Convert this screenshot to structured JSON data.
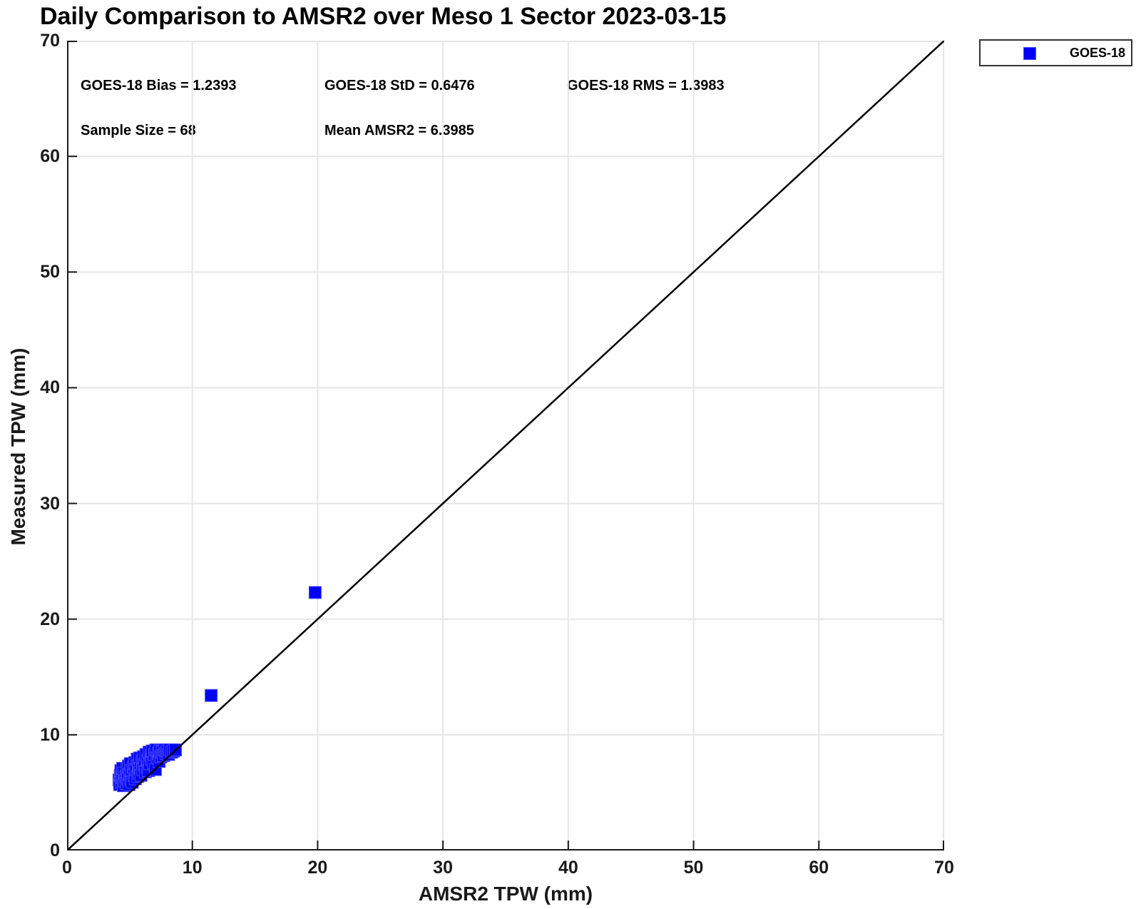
{
  "title": "Daily Comparison to AMSR2 over Meso 1 Sector 2023-03-15",
  "stats": {
    "bias": "GOES-18 Bias = 1.2393",
    "std": "GOES-18 StD = 0.6476",
    "rms": "GOES-18 RMS = 1.3983",
    "sample_size": "Sample Size = 68",
    "mean_amsr2": "Mean AMSR2 = 6.3985"
  },
  "legend": {
    "entries": [
      {
        "label": "GOES-18",
        "marker": "square",
        "color": "#0202f8"
      }
    ],
    "position": "top-right-outside"
  },
  "colors": {
    "marker_fill": "#0202f8",
    "marker_edge": "#4d4dff",
    "reference_line": "#000000",
    "grid": "#e6e6e6",
    "axis": "#1a1a1a"
  },
  "chart_data": {
    "type": "scatter",
    "title": "Daily Comparison to AMSR2 over Meso 1 Sector 2023-03-15",
    "xlabel": "AMSR2 TPW (mm)",
    "ylabel": "Measured TPW (mm)",
    "xlim": [
      0,
      70
    ],
    "ylim": [
      0,
      70
    ],
    "x_ticks": [
      0,
      10,
      20,
      30,
      40,
      50,
      60,
      70
    ],
    "y_ticks": [
      0,
      10,
      20,
      30,
      40,
      50,
      60,
      70
    ],
    "grid": true,
    "reference_line": {
      "label": "1:1 line",
      "from": [
        0,
        0
      ],
      "to": [
        70,
        70
      ]
    },
    "annotations": [
      "GOES-18 Bias = 1.2393",
      "GOES-18 StD = 0.6476",
      "GOES-18 RMS = 1.3983",
      "Sample Size = 68",
      "Mean AMSR2 = 6.3985"
    ],
    "series": [
      {
        "name": "GOES-18",
        "marker": "square",
        "sample_size": 68,
        "points": [
          [
            4.15,
            6.1
          ],
          [
            4.2,
            5.7
          ],
          [
            4.25,
            6.5
          ],
          [
            4.3,
            6.9
          ],
          [
            4.35,
            5.9
          ],
          [
            4.4,
            6.3
          ],
          [
            4.45,
            7.1
          ],
          [
            4.5,
            5.6
          ],
          [
            4.55,
            6.7
          ],
          [
            4.6,
            6.0
          ],
          [
            4.7,
            6.4
          ],
          [
            4.75,
            5.8
          ],
          [
            4.8,
            7.0
          ],
          [
            4.85,
            6.2
          ],
          [
            4.9,
            7.3
          ],
          [
            4.95,
            5.7
          ],
          [
            5.0,
            6.6
          ],
          [
            5.05,
            7.5
          ],
          [
            5.1,
            6.1
          ],
          [
            5.15,
            6.9
          ],
          [
            5.2,
            5.9
          ],
          [
            5.3,
            7.2
          ],
          [
            5.35,
            6.5
          ],
          [
            5.4,
            7.6
          ],
          [
            5.45,
            6.2
          ],
          [
            5.5,
            7.0
          ],
          [
            5.6,
            7.9
          ],
          [
            5.65,
            6.4
          ],
          [
            5.7,
            7.3
          ],
          [
            5.75,
            6.7
          ],
          [
            5.8,
            8.0
          ],
          [
            5.85,
            7.1
          ],
          [
            5.9,
            6.5
          ],
          [
            6.0,
            7.7
          ],
          [
            6.05,
            7.0
          ],
          [
            6.1,
            8.1
          ],
          [
            6.2,
            7.4
          ],
          [
            6.25,
            6.8
          ],
          [
            6.3,
            8.3
          ],
          [
            6.4,
            7.2
          ],
          [
            6.45,
            7.8
          ],
          [
            6.5,
            6.9
          ],
          [
            6.55,
            8.5
          ],
          [
            6.6,
            7.5
          ],
          [
            6.7,
            8.2
          ],
          [
            6.75,
            7.9
          ],
          [
            6.8,
            8.6
          ],
          [
            6.9,
            7.6
          ],
          [
            7.0,
            8.3
          ],
          [
            7.05,
            7.0
          ],
          [
            7.1,
            8.7
          ],
          [
            7.2,
            8.0
          ],
          [
            7.3,
            8.4
          ],
          [
            7.35,
            7.7
          ],
          [
            7.4,
            8.6
          ],
          [
            7.5,
            8.1
          ],
          [
            7.6,
            8.5
          ],
          [
            7.7,
            8.2
          ],
          [
            7.8,
            8.7
          ],
          [
            7.9,
            8.4
          ],
          [
            8.0,
            8.6
          ],
          [
            8.1,
            8.3
          ],
          [
            8.2,
            8.7
          ],
          [
            8.35,
            8.5
          ],
          [
            8.5,
            8.6
          ],
          [
            8.65,
            8.7
          ],
          [
            11.5,
            13.4
          ],
          [
            19.8,
            22.3
          ]
        ]
      }
    ]
  }
}
